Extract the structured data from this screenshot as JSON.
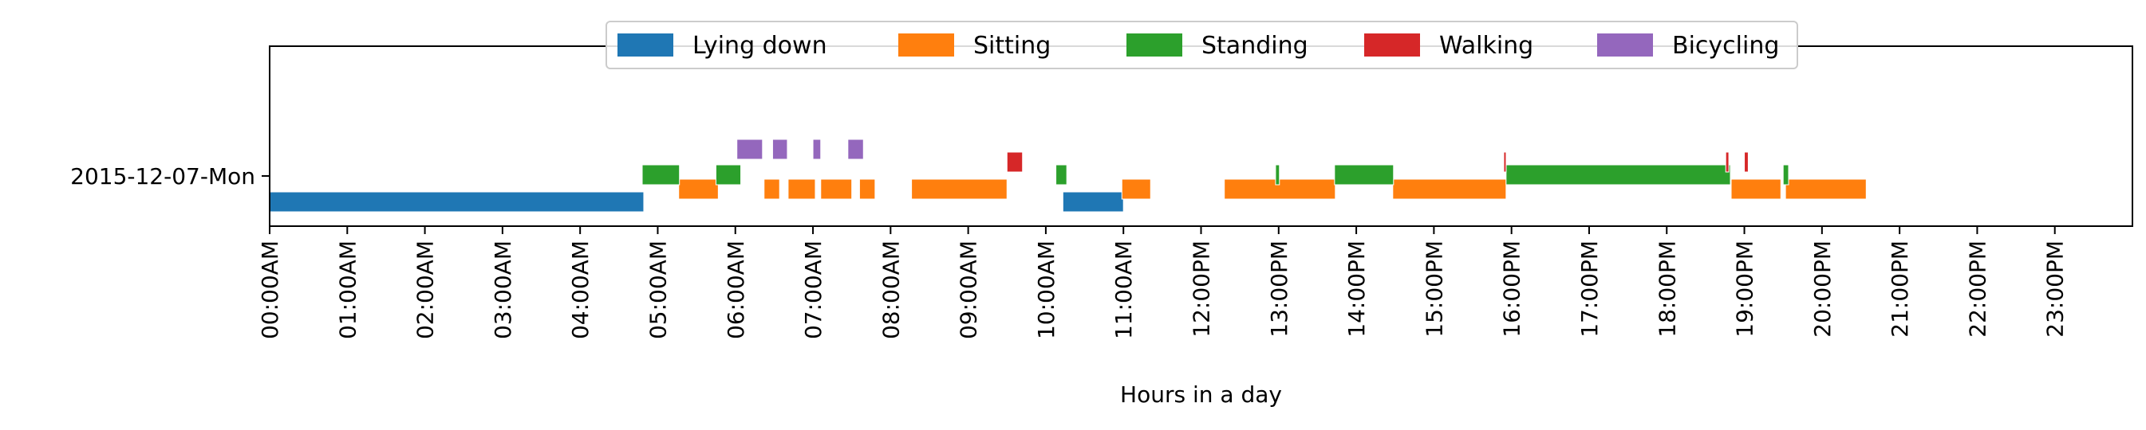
{
  "chart_data": {
    "type": "timeline",
    "xlabel": "Hours in a day",
    "xlim": [
      0,
      24
    ],
    "x_ticks": [
      "00:00AM",
      "01:00AM",
      "02:00AM",
      "03:00AM",
      "04:00AM",
      "05:00AM",
      "06:00AM",
      "07:00AM",
      "08:00AM",
      "09:00AM",
      "10:00AM",
      "11:00AM",
      "12:00PM",
      "13:00PM",
      "14:00PM",
      "15:00PM",
      "16:00PM",
      "17:00PM",
      "18:00PM",
      "19:00PM",
      "20:00PM",
      "21:00PM",
      "22:00PM",
      "23:00PM"
    ],
    "y_ticks": [
      "2015-12-07-Mon"
    ],
    "legend_position": "top-center",
    "series": [
      {
        "name": "Lying down",
        "color": "#1f77b4",
        "intervals": [
          [
            0.0,
            4.82
          ],
          [
            10.22,
            11.0
          ]
        ]
      },
      {
        "name": "Sitting",
        "color": "#ff7f0e",
        "intervals": [
          [
            5.27,
            5.78
          ],
          [
            6.37,
            6.57
          ],
          [
            6.68,
            7.03
          ],
          [
            7.1,
            7.5
          ],
          [
            7.6,
            7.8
          ],
          [
            8.27,
            9.5
          ],
          [
            10.98,
            11.35
          ],
          [
            12.3,
            13.73
          ],
          [
            14.47,
            15.93
          ],
          [
            18.83,
            19.47
          ],
          [
            19.53,
            20.57
          ]
        ]
      },
      {
        "name": "Standing",
        "color": "#2ca02c",
        "intervals": [
          [
            4.8,
            5.28
          ],
          [
            5.75,
            6.07
          ],
          [
            10.13,
            10.27
          ],
          [
            12.96,
            13.01
          ],
          [
            13.72,
            14.48
          ],
          [
            15.93,
            18.82
          ],
          [
            19.5,
            19.57
          ]
        ]
      },
      {
        "name": "Walking",
        "color": "#d62728",
        "intervals": [
          [
            9.5,
            9.7
          ],
          [
            15.9,
            15.93
          ],
          [
            18.76,
            18.8
          ],
          [
            19.0,
            19.05
          ]
        ]
      },
      {
        "name": "Bicycling",
        "color": "#9467bd",
        "intervals": [
          [
            6.02,
            6.35
          ],
          [
            6.48,
            6.67
          ],
          [
            7.0,
            7.1
          ],
          [
            7.45,
            7.65
          ]
        ]
      }
    ]
  }
}
